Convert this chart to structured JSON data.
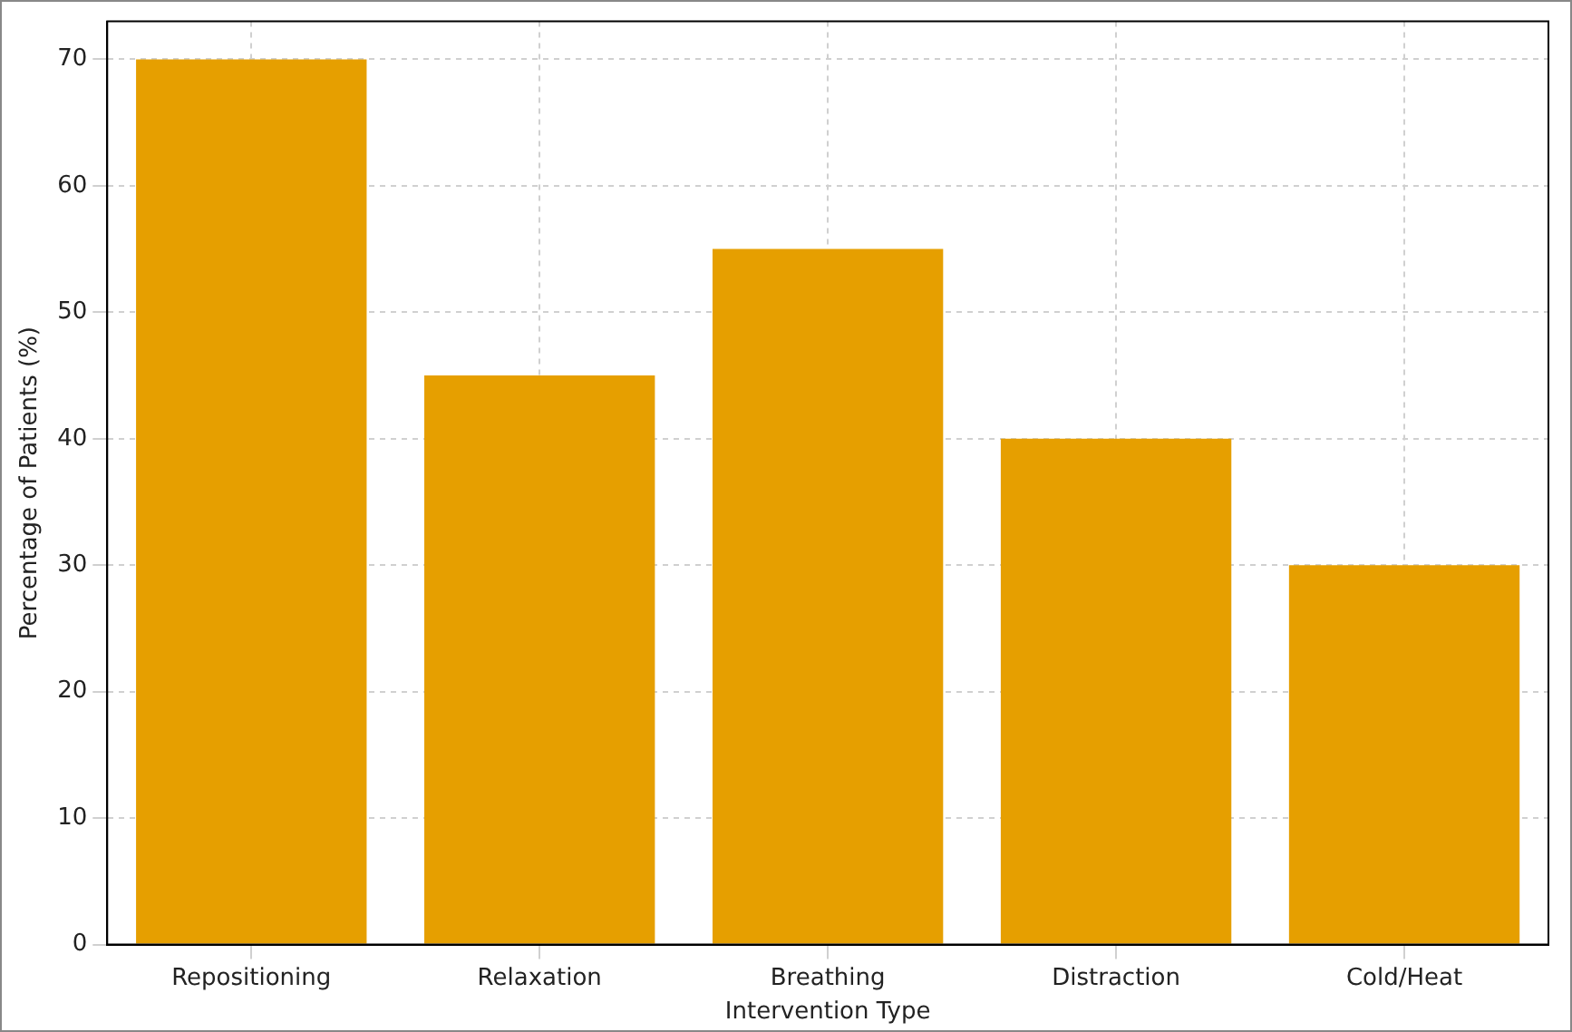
{
  "chart_data": {
    "type": "bar",
    "xlabel": "Intervention Type",
    "ylabel": "Percentage of Patients (%)",
    "categories": [
      "Repositioning",
      "Relaxation",
      "Breathing",
      "Distraction",
      "Cold/Heat"
    ],
    "values": [
      70,
      45,
      55,
      40,
      30
    ],
    "color": "#e69f00",
    "ylim": [
      0,
      73
    ],
    "yticks": [
      0,
      10,
      20,
      30,
      40,
      50,
      60,
      70
    ],
    "grid": true,
    "legend": false
  }
}
